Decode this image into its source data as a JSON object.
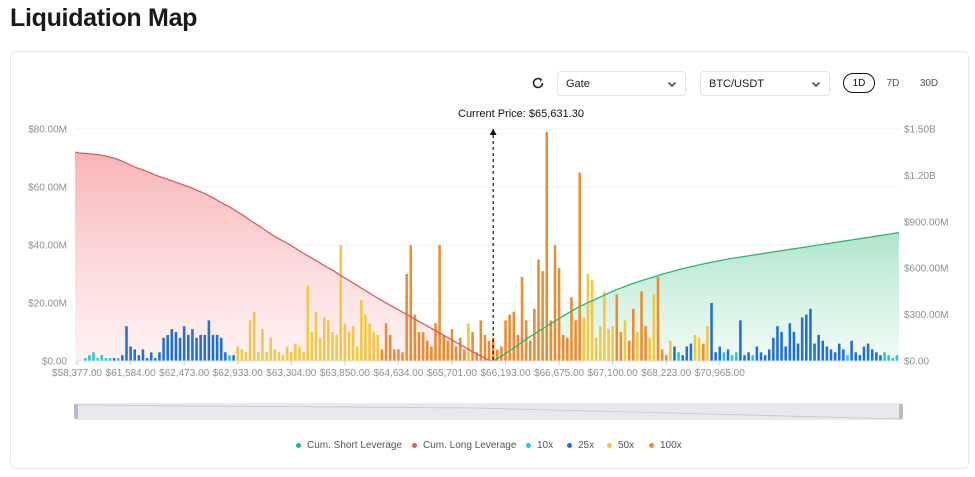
{
  "page": {
    "title": "Liquidation Map"
  },
  "toolbar": {
    "exchange_value": "Gate",
    "pair_value": "BTC/USDT",
    "ranges": [
      "1D",
      "7D",
      "30D"
    ],
    "active_range": "1D"
  },
  "colors": {
    "long": "#e25a5a",
    "short": "#2bb673",
    "x10": "#26c6da",
    "x25": "#1e6fd9",
    "x50": "#f2c744",
    "x100": "#ef8a2f",
    "grid": "#eef0f3",
    "axis_text": "#8a8f98"
  },
  "chart_data": {
    "type": "bar",
    "current_price_label": "Current Price: $65,631.30",
    "current_price_index": 101,
    "x_tick_labels": [
      "$58,377.00",
      "$61,584.00",
      "$62,473.00",
      "$62,933.00",
      "$63,304.00",
      "$63,850.00",
      "$64,634.00",
      "$65,701.00",
      "$66,193.00",
      "$66,675.00",
      "$67,100.00",
      "$68,223.00",
      "$70,965.00"
    ],
    "x_tick_indices": [
      0,
      13,
      26,
      39,
      52,
      65,
      78,
      91,
      104,
      117,
      130,
      143,
      156
    ],
    "left_axis": {
      "ticks": [
        "$0.00",
        "$20.00M",
        "$40.00M",
        "$60.00M",
        "$80.00M"
      ],
      "max": 80
    },
    "right_axis": {
      "ticks": [
        "$0.00",
        "$300.00M",
        "$600.00M",
        "$900.00M",
        "$1.20B",
        "$1.50B"
      ],
      "max": 1500
    },
    "legend": [
      {
        "name": "Cum. Short Leverage",
        "color": "#2bb673"
      },
      {
        "name": "Cum. Long Leverage",
        "color": "#e25a5a"
      },
      {
        "name": "10x",
        "color": "#26c6da"
      },
      {
        "name": "25x",
        "color": "#1e6fd9"
      },
      {
        "name": "50x",
        "color": "#f2c744"
      },
      {
        "name": "100x",
        "color": "#ef8a2f"
      }
    ],
    "bars": [
      [
        1,
        0
      ],
      [
        1,
        0
      ],
      [
        0,
        1
      ],
      [
        0,
        2
      ],
      [
        0,
        3
      ],
      [
        0,
        1
      ],
      [
        0,
        2
      ],
      [
        0,
        1
      ],
      [
        0,
        1
      ],
      [
        1,
        1
      ],
      [
        0,
        1
      ],
      [
        1,
        2
      ],
      [
        1,
        12
      ],
      [
        1,
        5
      ],
      [
        1,
        4
      ],
      [
        1,
        2
      ],
      [
        1,
        4
      ],
      [
        1,
        1
      ],
      [
        1,
        3
      ],
      [
        1,
        1
      ],
      [
        1,
        3
      ],
      [
        1,
        8
      ],
      [
        1,
        9
      ],
      [
        1,
        11
      ],
      [
        1,
        10
      ],
      [
        1,
        8
      ],
      [
        1,
        12
      ],
      [
        1,
        9
      ],
      [
        1,
        11
      ],
      [
        1,
        8
      ],
      [
        1,
        9
      ],
      [
        1,
        9
      ],
      [
        1,
        14
      ],
      [
        1,
        9
      ],
      [
        1,
        9
      ],
      [
        1,
        8
      ],
      [
        1,
        3
      ],
      [
        0,
        2
      ],
      [
        1,
        2
      ],
      [
        2,
        5
      ],
      [
        2,
        4
      ],
      [
        2,
        3
      ],
      [
        2,
        14
      ],
      [
        2,
        17
      ],
      [
        2,
        3
      ],
      [
        2,
        11
      ],
      [
        2,
        3
      ],
      [
        2,
        8
      ],
      [
        2,
        4
      ],
      [
        2,
        3
      ],
      [
        2,
        2
      ],
      [
        2,
        5
      ],
      [
        2,
        3
      ],
      [
        2,
        6
      ],
      [
        2,
        5
      ],
      [
        2,
        3
      ],
      [
        2,
        26
      ],
      [
        2,
        10
      ],
      [
        2,
        17
      ],
      [
        2,
        8
      ],
      [
        2,
        15
      ],
      [
        2,
        14
      ],
      [
        2,
        10
      ],
      [
        2,
        9
      ],
      [
        2,
        40
      ],
      [
        2,
        13
      ],
      [
        2,
        10
      ],
      [
        2,
        12
      ],
      [
        2,
        5
      ],
      [
        2,
        21
      ],
      [
        2,
        16
      ],
      [
        2,
        13
      ],
      [
        2,
        10
      ],
      [
        2,
        9
      ],
      [
        3,
        4
      ],
      [
        3,
        13
      ],
      [
        3,
        9
      ],
      [
        3,
        4
      ],
      [
        3,
        4
      ],
      [
        3,
        3
      ],
      [
        3,
        30
      ],
      [
        3,
        40
      ],
      [
        3,
        16
      ],
      [
        3,
        10
      ],
      [
        3,
        10
      ],
      [
        3,
        7
      ],
      [
        3,
        5
      ],
      [
        3,
        13
      ],
      [
        3,
        40
      ],
      [
        3,
        9
      ],
      [
        3,
        7
      ],
      [
        3,
        11
      ],
      [
        3,
        5
      ],
      [
        3,
        8
      ],
      [
        3,
        4
      ],
      [
        2,
        13
      ],
      [
        3,
        10
      ],
      [
        3,
        3
      ],
      [
        3,
        14
      ],
      [
        3,
        9
      ],
      [
        3,
        7
      ],
      [
        3,
        8
      ],
      [
        3,
        4
      ],
      [
        3,
        5
      ],
      [
        3,
        14
      ],
      [
        3,
        16
      ],
      [
        3,
        17
      ],
      [
        3,
        9
      ],
      [
        3,
        29
      ],
      [
        3,
        14
      ],
      [
        3,
        7
      ],
      [
        3,
        18
      ],
      [
        3,
        35
      ],
      [
        3,
        31
      ],
      [
        3,
        79
      ],
      [
        3,
        14
      ],
      [
        3,
        40
      ],
      [
        3,
        32
      ],
      [
        3,
        9
      ],
      [
        3,
        8
      ],
      [
        3,
        22
      ],
      [
        3,
        14
      ],
      [
        3,
        65
      ],
      [
        2,
        15
      ],
      [
        2,
        30
      ],
      [
        2,
        28
      ],
      [
        2,
        8
      ],
      [
        2,
        12
      ],
      [
        2,
        24
      ],
      [
        2,
        11
      ],
      [
        2,
        12
      ],
      [
        3,
        23
      ],
      [
        3,
        10
      ],
      [
        2,
        14
      ],
      [
        3,
        7
      ],
      [
        3,
        18
      ],
      [
        2,
        10
      ],
      [
        3,
        24
      ],
      [
        3,
        12
      ],
      [
        2,
        8
      ],
      [
        2,
        23
      ],
      [
        3,
        29
      ],
      [
        3,
        4
      ],
      [
        3,
        2
      ],
      [
        2,
        7
      ],
      [
        1,
        5
      ],
      [
        0,
        3
      ],
      [
        1,
        2
      ],
      [
        1,
        5
      ],
      [
        1,
        6
      ],
      [
        2,
        9
      ],
      [
        2,
        8
      ],
      [
        3,
        6
      ],
      [
        2,
        12
      ],
      [
        1,
        20
      ],
      [
        1,
        3
      ],
      [
        1,
        5
      ],
      [
        0,
        3
      ],
      [
        1,
        4
      ],
      [
        0,
        2
      ],
      [
        0,
        3
      ],
      [
        1,
        14
      ],
      [
        1,
        2
      ],
      [
        1,
        3
      ],
      [
        0,
        2
      ],
      [
        1,
        5
      ],
      [
        1,
        3
      ],
      [
        1,
        2
      ],
      [
        1,
        4
      ],
      [
        1,
        8
      ],
      [
        1,
        12
      ],
      [
        1,
        10
      ],
      [
        1,
        5
      ],
      [
        1,
        13
      ],
      [
        1,
        10
      ],
      [
        1,
        6
      ],
      [
        1,
        15
      ],
      [
        1,
        16
      ],
      [
        1,
        18
      ],
      [
        1,
        6
      ],
      [
        1,
        9
      ],
      [
        1,
        7
      ],
      [
        1,
        5
      ],
      [
        1,
        4
      ],
      [
        1,
        3
      ],
      [
        1,
        6
      ],
      [
        1,
        4
      ],
      [
        0,
        2
      ],
      [
        1,
        7
      ],
      [
        1,
        3
      ],
      [
        1,
        2
      ],
      [
        1,
        5
      ],
      [
        1,
        6
      ],
      [
        1,
        4
      ],
      [
        1,
        3
      ],
      [
        1,
        2
      ],
      [
        0,
        3
      ],
      [
        0,
        2
      ],
      [
        0,
        1
      ],
      [
        0,
        2
      ]
    ],
    "cum_long": [
      1350,
      1345,
      1343,
      1340,
      1338,
      1335,
      1330,
      1325,
      1318,
      1310,
      1300,
      1288,
      1275,
      1262,
      1250,
      1240,
      1230,
      1218,
      1205,
      1195,
      1185,
      1175,
      1165,
      1155,
      1145,
      1135,
      1125,
      1112,
      1100,
      1088,
      1075,
      1060,
      1045,
      1028,
      1012,
      998,
      980,
      963,
      945,
      925,
      905,
      888,
      870,
      850,
      830,
      812,
      795,
      780,
      765,
      748,
      730,
      712,
      695,
      678,
      662,
      645,
      628,
      611,
      595,
      578,
      560,
      542,
      525,
      508,
      490,
      472,
      455,
      438,
      420,
      403,
      386,
      370,
      354,
      338,
      322,
      306,
      290,
      274,
      258,
      242,
      226,
      210,
      194,
      178,
      162,
      146,
      130,
      114,
      98,
      82,
      66,
      50,
      34,
      18,
      6,
      0
    ],
    "cum_short": [
      0,
      15,
      30,
      48,
      65,
      82,
      100,
      118,
      136,
      155,
      172,
      188,
      204,
      220,
      236,
      252,
      268,
      284,
      300,
      315,
      330,
      345,
      358,
      370,
      382,
      394,
      406,
      418,
      430,
      442,
      453,
      464,
      474,
      484,
      494,
      503,
      512,
      520,
      528,
      536,
      544,
      552,
      560,
      568,
      575,
      582,
      589,
      596,
      602,
      608,
      614,
      620,
      626,
      632,
      637,
      642,
      647,
      652,
      657,
      662,
      666,
      670,
      674,
      678,
      682,
      686,
      690,
      694,
      698,
      702,
      706,
      710,
      714,
      718,
      722,
      726,
      730,
      734,
      738,
      742,
      746,
      750,
      754,
      758,
      762,
      766,
      770,
      774,
      778,
      782,
      786,
      790,
      794,
      798,
      802,
      806,
      810,
      814,
      818,
      822,
      826,
      830
    ]
  }
}
